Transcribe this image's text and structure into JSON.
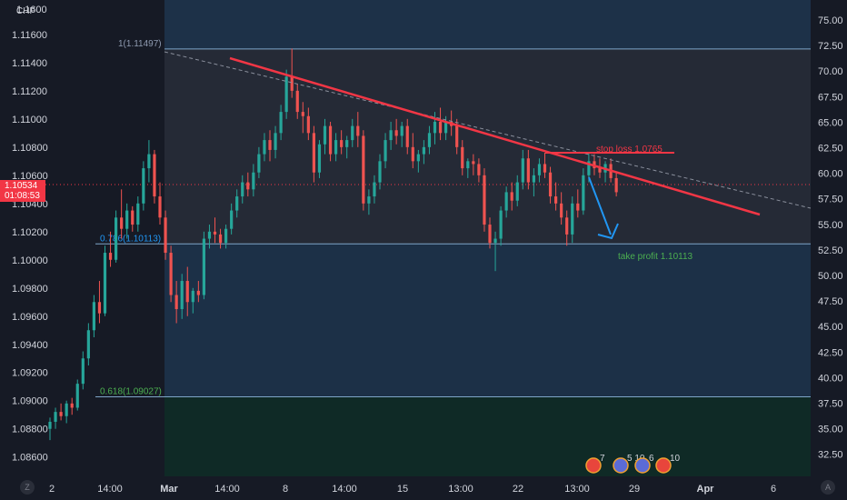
{
  "header": {
    "symbol_fragment": "CHF",
    "top_clipped_label": "1.1600"
  },
  "price_tag": {
    "price": "1.10534",
    "countdown": "01:08:53",
    "color": "#f23645"
  },
  "annotations": {
    "fib_top": "1(1.11497)",
    "fib_mid": "0.786(1.10113)",
    "fib_low": "0.618(1.09027)",
    "stop_loss": "stop loss 1.0765",
    "take_profit": "take profit 1.10113"
  },
  "event_badges": [
    "7",
    "5",
    "10",
    "6",
    "10"
  ],
  "corner_buttons": {
    "left": "Z",
    "right": "A"
  },
  "colors": {
    "up": "#26a69a",
    "down": "#ef5350",
    "trendline": "#f23645",
    "arrow": "#2196f3",
    "stop_loss_text": "#f23645",
    "take_profit_text": "#4caf50",
    "fib_line": "#7fa6c9",
    "background": "#161a25"
  },
  "chart_data": {
    "type": "candlestick",
    "symbol": "CHF",
    "left_axis": {
      "ticks": [
        "1.11600",
        "1.11400",
        "1.11200",
        "1.11000",
        "1.10800",
        "1.10600",
        "1.10400",
        "1.10200",
        "1.10000",
        "1.09800",
        "1.09600",
        "1.09400",
        "1.09200",
        "1.09000",
        "1.08800",
        "1.08600"
      ],
      "range": [
        1.0854,
        1.1178
      ]
    },
    "right_axis": {
      "ticks": [
        "75.00",
        "72.50",
        "70.00",
        "67.50",
        "65.00",
        "62.50",
        "60.00",
        "57.50",
        "55.00",
        "52.50",
        "50.00",
        "47.50",
        "45.00",
        "42.50",
        "40.00",
        "37.50",
        "35.00",
        "32.50"
      ]
    },
    "x_ticks": [
      "2",
      "14:00",
      "Mar",
      "14:00",
      "8",
      "14:00",
      "15",
      "13:00",
      "22",
      "13:00",
      "29",
      "Apr",
      "6"
    ],
    "fib_levels": [
      {
        "ratio": 1,
        "price": 1.11497
      },
      {
        "ratio": 0.786,
        "price": 1.10113
      },
      {
        "ratio": 0.618,
        "price": 1.09027
      }
    ],
    "current_price": 1.10534,
    "stop_loss": 1.0765,
    "take_profit": 1.10113,
    "candles": [
      [
        1.088,
        1.0888,
        1.0872,
        1.0885
      ],
      [
        1.0885,
        1.0895,
        1.088,
        1.0892
      ],
      [
        1.0892,
        1.0898,
        1.0886,
        1.0889
      ],
      [
        1.0889,
        1.09,
        1.0884,
        1.0898
      ],
      [
        1.0898,
        1.0902,
        1.089,
        1.0895
      ],
      [
        1.0895,
        1.0915,
        1.0893,
        1.0912
      ],
      [
        1.0912,
        1.0935,
        1.0908,
        1.093
      ],
      [
        1.093,
        1.0955,
        1.0925,
        1.095
      ],
      [
        1.095,
        1.0975,
        1.0945,
        1.097
      ],
      [
        1.097,
        1.0985,
        1.0955,
        1.0962
      ],
      [
        1.0962,
        1.101,
        1.096,
        1.1005
      ],
      [
        1.1005,
        1.102,
        1.0995,
        1.1
      ],
      [
        1.1,
        1.1035,
        1.0998,
        1.103
      ],
      [
        1.103,
        1.105,
        1.1015,
        1.1022
      ],
      [
        1.1022,
        1.104,
        1.1015,
        1.1035
      ],
      [
        1.1035,
        1.1038,
        1.102,
        1.1025
      ],
      [
        1.1025,
        1.1045,
        1.102,
        1.104
      ],
      [
        1.104,
        1.107,
        1.1035,
        1.1065
      ],
      [
        1.1065,
        1.1085,
        1.1055,
        1.1075
      ],
      [
        1.1075,
        1.1078,
        1.104,
        1.1045
      ],
      [
        1.1045,
        1.1055,
        1.1025,
        1.103
      ],
      [
        1.103,
        1.1035,
        1.1,
        1.1005
      ],
      [
        1.1005,
        1.101,
        1.097,
        1.0975
      ],
      [
        1.0975,
        1.0985,
        1.0955,
        1.0965
      ],
      [
        1.0965,
        1.099,
        1.0958,
        1.0985
      ],
      [
        1.0985,
        1.0995,
        1.096,
        1.097
      ],
      [
        1.097,
        1.098,
        1.0962,
        1.0978
      ],
      [
        1.0978,
        1.0985,
        1.097,
        1.0975
      ],
      [
        1.0975,
        1.102,
        1.0972,
        1.1015
      ],
      [
        1.1015,
        1.1025,
        1.1008,
        1.102
      ],
      [
        1.102,
        1.103,
        1.1012,
        1.1018
      ],
      [
        1.1018,
        1.1022,
        1.1008,
        1.1012
      ],
      [
        1.1012,
        1.1025,
        1.1008,
        1.1022
      ],
      [
        1.1022,
        1.104,
        1.1018,
        1.1035
      ],
      [
        1.1035,
        1.105,
        1.103,
        1.1045
      ],
      [
        1.1045,
        1.106,
        1.104,
        1.1055
      ],
      [
        1.1055,
        1.1062,
        1.1045,
        1.105
      ],
      [
        1.105,
        1.1068,
        1.1045,
        1.1062
      ],
      [
        1.1062,
        1.108,
        1.1058,
        1.1075
      ],
      [
        1.1075,
        1.109,
        1.107,
        1.1085
      ],
      [
        1.1085,
        1.1092,
        1.107,
        1.1078
      ],
      [
        1.1078,
        1.1095,
        1.1072,
        1.109
      ],
      [
        1.109,
        1.111,
        1.1085,
        1.1105
      ],
      [
        1.1105,
        1.1135,
        1.11,
        1.113
      ],
      [
        1.113,
        1.115,
        1.1115,
        1.112
      ],
      [
        1.112,
        1.1125,
        1.11,
        1.1105
      ],
      [
        1.1105,
        1.1112,
        1.109,
        1.1102
      ],
      [
        1.1102,
        1.1108,
        1.1085,
        1.109
      ],
      [
        1.109,
        1.1095,
        1.1055,
        1.1062
      ],
      [
        1.1062,
        1.1085,
        1.1058,
        1.1082
      ],
      [
        1.1082,
        1.11,
        1.1075,
        1.1095
      ],
      [
        1.1095,
        1.1098,
        1.107,
        1.1075
      ],
      [
        1.1075,
        1.109,
        1.107,
        1.1085
      ],
      [
        1.1085,
        1.1092,
        1.1075,
        1.108
      ],
      [
        1.108,
        1.1088,
        1.1072,
        1.1085
      ],
      [
        1.1085,
        1.11,
        1.108,
        1.1095
      ],
      [
        1.1095,
        1.1105,
        1.108,
        1.1088
      ],
      [
        1.1088,
        1.1092,
        1.1035,
        1.104
      ],
      [
        1.104,
        1.105,
        1.1032,
        1.1045
      ],
      [
        1.1045,
        1.106,
        1.104,
        1.1055
      ],
      [
        1.1055,
        1.1075,
        1.105,
        1.107
      ],
      [
        1.107,
        1.109,
        1.1065,
        1.1085
      ],
      [
        1.1085,
        1.1098,
        1.1078,
        1.1092
      ],
      [
        1.1092,
        1.11,
        1.1082,
        1.1088
      ],
      [
        1.1088,
        1.1098,
        1.108,
        1.1095
      ],
      [
        1.1095,
        1.11,
        1.1075,
        1.108
      ],
      [
        1.108,
        1.109,
        1.1065,
        1.107
      ],
      [
        1.107,
        1.1078,
        1.1062,
        1.1075
      ],
      [
        1.1075,
        1.1085,
        1.1068,
        1.108
      ],
      [
        1.108,
        1.1095,
        1.1075,
        1.109
      ],
      [
        1.109,
        1.1105,
        1.1082,
        1.1098
      ],
      [
        1.1098,
        1.1108,
        1.1085,
        1.109
      ],
      [
        1.109,
        1.1102,
        1.1085,
        1.1098
      ],
      [
        1.1098,
        1.1106,
        1.1088,
        1.1095
      ],
      [
        1.1095,
        1.11,
        1.1075,
        1.108
      ],
      [
        1.108,
        1.1085,
        1.106,
        1.1065
      ],
      [
        1.1065,
        1.1072,
        1.1058,
        1.107
      ],
      [
        1.107,
        1.1075,
        1.106,
        1.1068
      ],
      [
        1.1068,
        1.1072,
        1.1055,
        1.106
      ],
      [
        1.106,
        1.1065,
        1.102,
        1.1025
      ],
      [
        1.1025,
        1.103,
        1.1008,
        1.1012
      ],
      [
        1.1012,
        1.102,
        1.0992,
        1.1015
      ],
      [
        1.1015,
        1.1038,
        1.101,
        1.1035
      ],
      [
        1.1035,
        1.1052,
        1.103,
        1.1048
      ],
      [
        1.1048,
        1.1055,
        1.1035,
        1.1042
      ],
      [
        1.1042,
        1.106,
        1.1038,
        1.1055
      ],
      [
        1.1055,
        1.1078,
        1.105,
        1.1072
      ],
      [
        1.1072,
        1.1078,
        1.105,
        1.1055
      ],
      [
        1.1055,
        1.1065,
        1.1045,
        1.106
      ],
      [
        1.106,
        1.1072,
        1.1055,
        1.1068
      ],
      [
        1.1068,
        1.1076,
        1.1058,
        1.1062
      ],
      [
        1.1062,
        1.1066,
        1.104,
        1.1045
      ],
      [
        1.1045,
        1.1055,
        1.1035,
        1.104
      ],
      [
        1.104,
        1.1048,
        1.1025,
        1.103
      ],
      [
        1.103,
        1.1035,
        1.101,
        1.1018
      ],
      [
        1.1018,
        1.1045,
        1.1012,
        1.104
      ],
      [
        1.104,
        1.105,
        1.103,
        1.1035
      ],
      [
        1.1035,
        1.1065,
        1.1032,
        1.106
      ],
      [
        1.106,
        1.1076,
        1.1055,
        1.107
      ],
      [
        1.107,
        1.1075,
        1.106,
        1.1065
      ],
      [
        1.1065,
        1.1072,
        1.1058,
        1.1062
      ],
      [
        1.1062,
        1.107,
        1.1055,
        1.1068
      ],
      [
        1.1068,
        1.1072,
        1.1055,
        1.1058
      ],
      [
        1.1058,
        1.1062,
        1.1045,
        1.1048
      ]
    ]
  }
}
